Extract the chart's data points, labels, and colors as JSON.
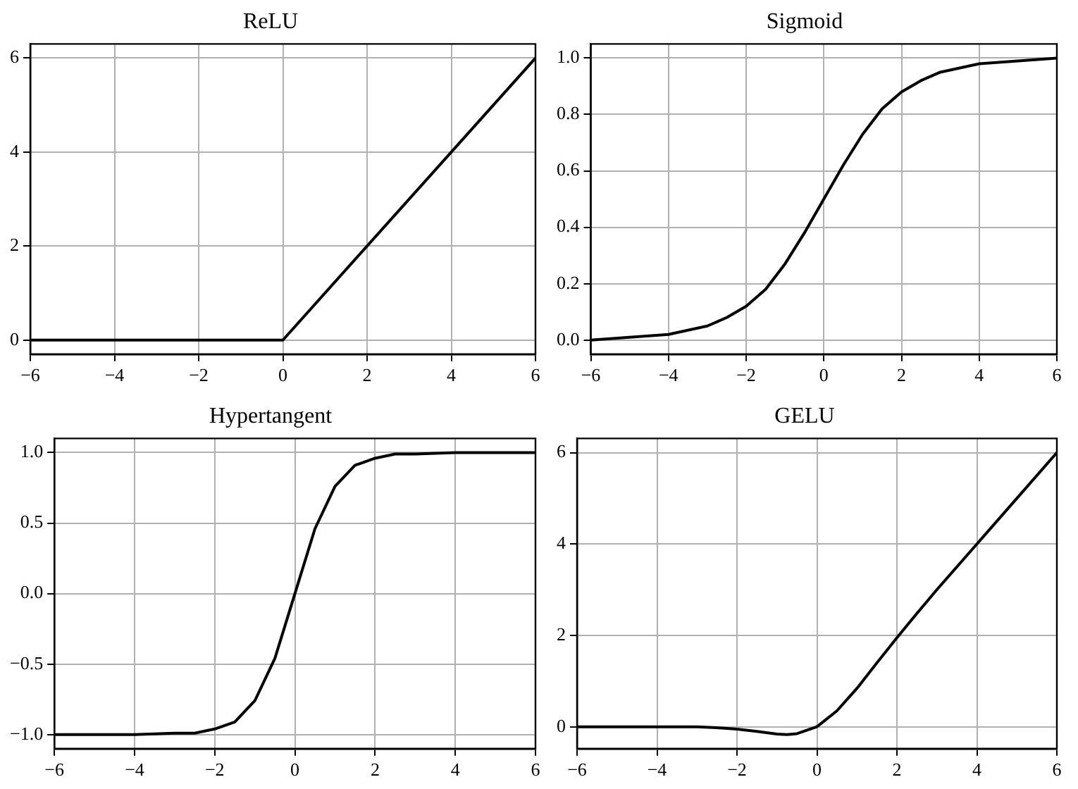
{
  "chart_data": [
    {
      "type": "line",
      "title": "ReLU",
      "x": [
        -6,
        0,
        6
      ],
      "series": [
        {
          "color": "#000000",
          "values": [
            0,
            0,
            6
          ]
        }
      ],
      "xlim": [
        -6,
        6
      ],
      "xticks": [
        {
          "value": -6,
          "label": "−6"
        },
        {
          "value": -4,
          "label": "−4"
        },
        {
          "value": -2,
          "label": "−2"
        },
        0,
        2,
        4,
        6
      ],
      "ylim": [
        -0.3,
        6.3
      ],
      "yticks": [
        0,
        2,
        4,
        6
      ],
      "grid": true,
      "legend": false,
      "marker": "none",
      "line_style": "solid"
    },
    {
      "type": "line",
      "title": "Sigmoid",
      "x": [
        -6,
        -5,
        -4,
        -3,
        -2.5,
        -2,
        -1.5,
        -1,
        -0.5,
        0,
        0.5,
        1,
        1.5,
        2,
        2.5,
        3,
        4,
        5,
        6
      ],
      "series": [
        {
          "color": "#000000",
          "values": [
            0.0,
            0.01,
            0.02,
            0.05,
            0.08,
            0.12,
            0.18,
            0.27,
            0.38,
            0.5,
            0.62,
            0.73,
            0.82,
            0.88,
            0.92,
            0.95,
            0.98,
            0.99,
            1.0
          ]
        }
      ],
      "xlim": [
        -6,
        6
      ],
      "xticks": [
        {
          "value": -6,
          "label": "−6"
        },
        {
          "value": -4,
          "label": "−4"
        },
        {
          "value": -2,
          "label": "−2"
        },
        0,
        2,
        4,
        6
      ],
      "ylim": [
        -0.05,
        1.05
      ],
      "yticks": [
        {
          "value": 0,
          "label": "0.0"
        },
        0.2,
        0.4,
        0.6,
        0.8,
        {
          "value": 1,
          "label": "1.0"
        }
      ],
      "grid": true,
      "legend": false,
      "marker": "none",
      "line_style": "solid"
    },
    {
      "type": "line",
      "title": "Hypertangent",
      "x": [
        -6,
        -5,
        -4,
        -3,
        -2.5,
        -2,
        -1.5,
        -1,
        -0.5,
        0,
        0.5,
        1,
        1.5,
        2,
        2.5,
        3,
        4,
        5,
        6
      ],
      "series": [
        {
          "color": "#000000",
          "values": [
            -1.0,
            -1.0,
            -1.0,
            -0.99,
            -0.99,
            -0.96,
            -0.91,
            -0.76,
            -0.46,
            0.0,
            0.46,
            0.76,
            0.91,
            0.96,
            0.99,
            0.99,
            1.0,
            1.0,
            1.0
          ]
        }
      ],
      "xlim": [
        -6,
        6
      ],
      "xticks": [
        {
          "value": -6,
          "label": "−6"
        },
        {
          "value": -4,
          "label": "−4"
        },
        {
          "value": -2,
          "label": "−2"
        },
        0,
        2,
        4,
        6
      ],
      "ylim": [
        -1.1,
        1.1
      ],
      "yticks": [
        {
          "value": -1,
          "label": "−1.0"
        },
        {
          "value": -0.5,
          "label": "−0.5"
        },
        {
          "value": 0,
          "label": "0.0"
        },
        0.5,
        {
          "value": 1,
          "label": "1.0"
        }
      ],
      "grid": true,
      "legend": false,
      "marker": "none",
      "line_style": "solid"
    },
    {
      "type": "line",
      "title": "GELU",
      "x": [
        -6,
        -5,
        -4,
        -3,
        -2.5,
        -2,
        -1.5,
        -1,
        -0.75,
        -0.5,
        0,
        0.5,
        1,
        1.5,
        2,
        2.5,
        3,
        4,
        5,
        6
      ],
      "series": [
        {
          "color": "#000000",
          "values": [
            0.0,
            0.0,
            0.0,
            0.0,
            -0.02,
            -0.05,
            -0.1,
            -0.16,
            -0.17,
            -0.15,
            0.0,
            0.35,
            0.84,
            1.4,
            1.95,
            2.48,
            3.0,
            4.0,
            5.0,
            6.0
          ]
        }
      ],
      "xlim": [
        -6,
        6
      ],
      "xticks": [
        {
          "value": -6,
          "label": "−6"
        },
        {
          "value": -4,
          "label": "−4"
        },
        {
          "value": -2,
          "label": "−2"
        },
        0,
        2,
        4,
        6
      ],
      "ylim": [
        -0.48,
        6.31
      ],
      "yticks": [
        0,
        2,
        4,
        6
      ],
      "grid": true,
      "legend": false,
      "marker": "none",
      "line_style": "solid"
    }
  ]
}
